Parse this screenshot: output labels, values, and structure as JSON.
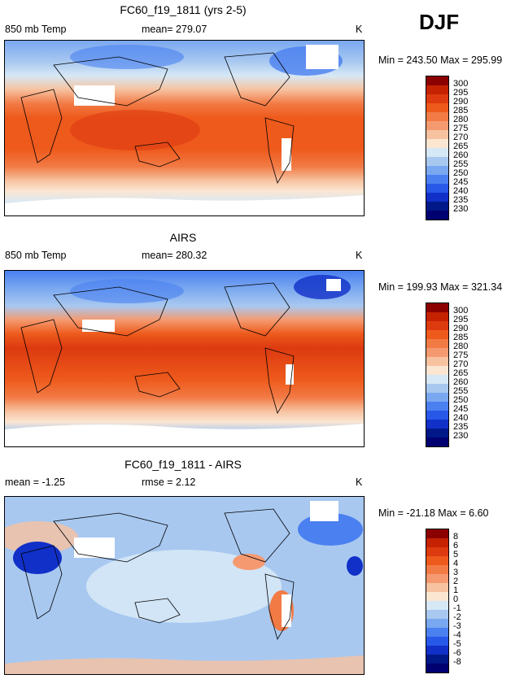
{
  "season": "DJF",
  "panels": [
    {
      "title": "FC60_f19_1811 (yrs 2-5)",
      "left_label": "850 mb Temp",
      "center_label": "mean= 279.07",
      "units": "K",
      "minmax": "Min = 243.50 Max = 295.99"
    },
    {
      "title": "AIRS",
      "left_label": "850 mb Temp",
      "center_label": "mean= 280.32",
      "units": "K",
      "minmax": "Min = 199.93 Max = 321.34"
    },
    {
      "title": "FC60_f19_1811 - AIRS",
      "left_label": "mean = -1.25",
      "center_label": "rmse = 2.12",
      "units": "K",
      "minmax": "Min = -21.18 Max = 6.60"
    }
  ],
  "temp_colorbar": {
    "levels": [
      "300",
      "295",
      "290",
      "285",
      "280",
      "275",
      "270",
      "265",
      "260",
      "255",
      "250",
      "245",
      "240",
      "235",
      "230"
    ],
    "colors": [
      "#8b0000",
      "#c42200",
      "#dd3a10",
      "#ee5a1c",
      "#f27a45",
      "#f59a70",
      "#f7c2a0",
      "#fbe6d2",
      "#d6e8f6",
      "#a8c8f0",
      "#7aa8f0",
      "#4a80f0",
      "#2858e8",
      "#1030c8",
      "#001888",
      "#000070"
    ]
  },
  "diff_colorbar": {
    "levels": [
      "8",
      "6",
      "5",
      "4",
      "3",
      "2",
      "1",
      "0",
      "-1",
      "-2",
      "-3",
      "-4",
      "-5",
      "-6",
      "-8"
    ],
    "colors": [
      "#8b0000",
      "#c42200",
      "#dd3a10",
      "#ee5a1c",
      "#f27a45",
      "#f59a70",
      "#f7c2a0",
      "#fbe6d2",
      "#d6e8f6",
      "#a8c8f0",
      "#7aa8f0",
      "#4a80f0",
      "#2858e8",
      "#1030c8",
      "#001888",
      "#000070"
    ]
  },
  "chart_data": [
    {
      "type": "heatmap",
      "title": "FC60_f19_1811 (yrs 2-5)",
      "variable": "850 mb Temp",
      "units": "K",
      "mean": 279.07,
      "min": 243.5,
      "max": 295.99,
      "contour_levels": [
        230,
        235,
        240,
        245,
        250,
        255,
        260,
        265,
        270,
        275,
        280,
        285,
        290,
        295,
        300
      ]
    },
    {
      "type": "heatmap",
      "title": "AIRS",
      "variable": "850 mb Temp",
      "units": "K",
      "mean": 280.32,
      "min": 199.93,
      "max": 321.34,
      "contour_levels": [
        230,
        235,
        240,
        245,
        250,
        255,
        260,
        265,
        270,
        275,
        280,
        285,
        290,
        295,
        300
      ]
    },
    {
      "type": "heatmap",
      "title": "FC60_f19_1811 - AIRS",
      "units": "K",
      "mean": -1.25,
      "rmse": 2.12,
      "min": -21.18,
      "max": 6.6,
      "contour_levels": [
        -8,
        -6,
        -5,
        -4,
        -3,
        -2,
        -1,
        0,
        1,
        2,
        3,
        4,
        5,
        6,
        8
      ]
    }
  ]
}
